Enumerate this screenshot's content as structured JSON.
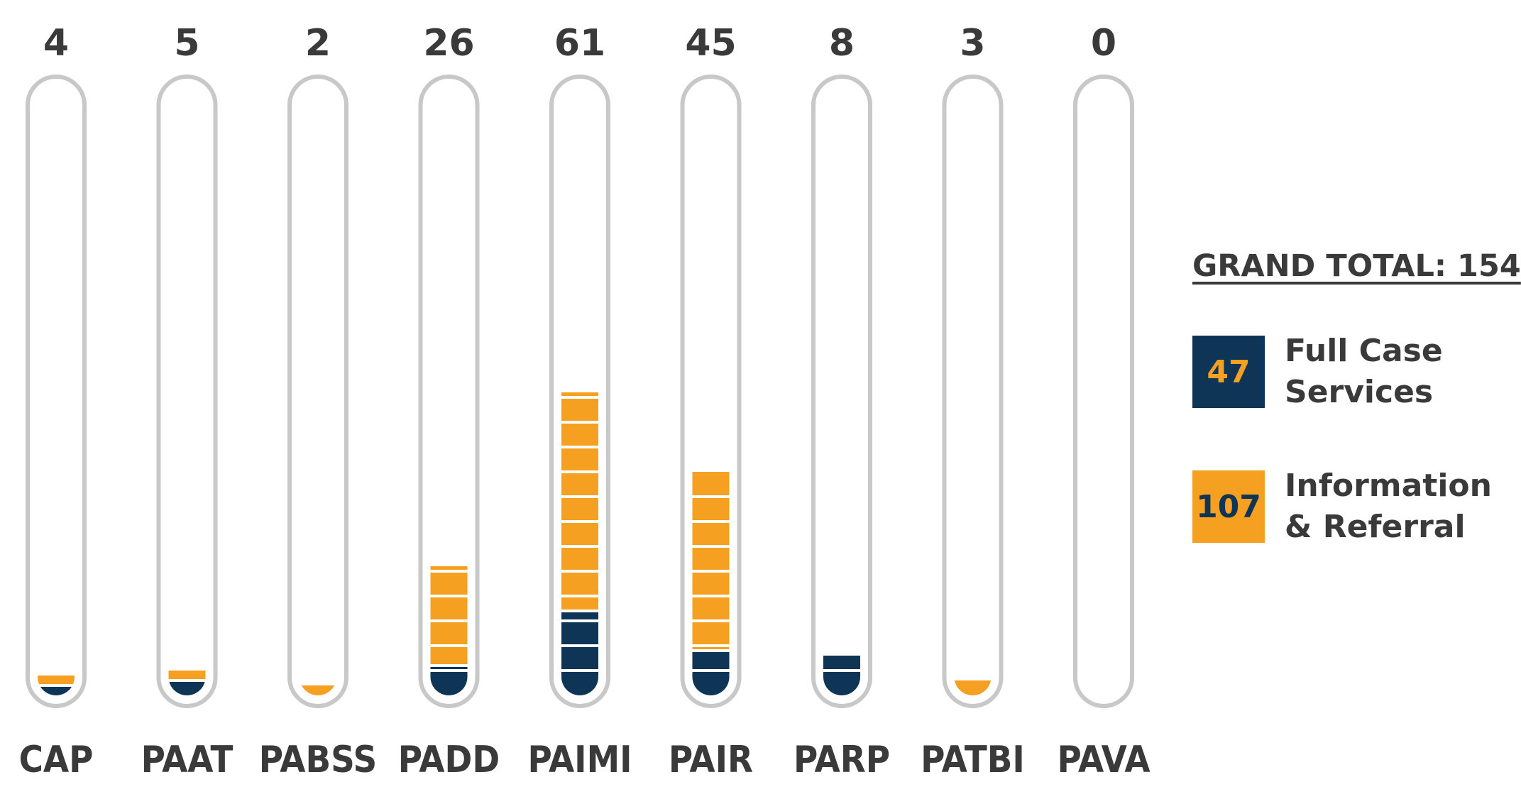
{
  "chart_data": {
    "type": "bar",
    "stacked": true,
    "categories": [
      "CAP",
      "PAAT",
      "PABSS",
      "PADD",
      "PAIMI",
      "PAIR",
      "PARP",
      "PATBI",
      "PAVA"
    ],
    "totals": [
      "4",
      "5",
      "2",
      "26",
      "61",
      "45",
      "8",
      "3",
      "0"
    ],
    "series": [
      {
        "name": "Full Case Services",
        "values": [
          2,
          3,
          0,
          6,
          17,
          9,
          8,
          0,
          0
        ]
      },
      {
        "name": "Information & Referral",
        "values": [
          2,
          2,
          2,
          20,
          44,
          36,
          0,
          3,
          0
        ]
      }
    ],
    "ylim": [
      0,
      162
    ],
    "grid": false,
    "legend_position": "right"
  },
  "legend": {
    "grand_total": "GRAND TOTAL: 154",
    "items": [
      {
        "value": "47",
        "label_line1": "Full Case",
        "label_line2": "Services"
      },
      {
        "value": "107",
        "label_line1": "Information",
        "label_line2": "& Referral"
      }
    ]
  },
  "colors": {
    "full_case": "#0e3456",
    "info_referral": "#f5a021",
    "tube_outline": "#c8c8c8",
    "text": "#3a3a3a"
  }
}
